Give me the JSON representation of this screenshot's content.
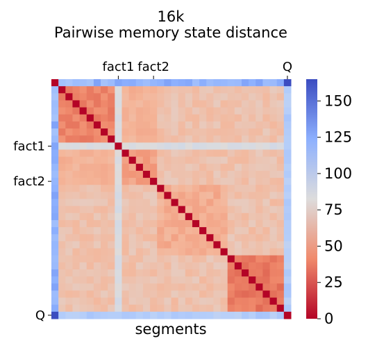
{
  "chart_data": {
    "type": "heatmap",
    "title": "16k",
    "subtitle": "Pairwise memory state distance",
    "xlabel": "segments",
    "ylabel": "",
    "n_segments": 34,
    "marked_segments": [
      {
        "label": "fact1",
        "index": 9
      },
      {
        "label": "fact2",
        "index": 14
      },
      {
        "label": "Q",
        "index": 33
      }
    ],
    "segment_groups": [
      {
        "start": 1,
        "end": 9,
        "self_distance": 40,
        "cross_to_after_fact1": 60
      },
      {
        "start": 10,
        "end": 14,
        "self_distance": 52
      },
      {
        "start": 15,
        "end": 24,
        "self_distance": 58
      },
      {
        "start": 25,
        "end": 32,
        "self_distance": 35
      }
    ],
    "special_distances": {
      "diagonal": 0,
      "segment0_to_others": 120,
      "segment0_to_Q": 165,
      "fact1_to_others": 85,
      "Q_to_others": 105,
      "cross_early_to_late": 68
    },
    "colorbar": {
      "colormap": "coolwarm_reversed",
      "min": 0,
      "max": 165,
      "ticks": [
        "0",
        "25",
        "50",
        "75",
        "100",
        "125",
        "150"
      ],
      "low_color": "#b40426",
      "mid_color": "#dddcdc",
      "high_color": "#3b4cc0"
    }
  }
}
